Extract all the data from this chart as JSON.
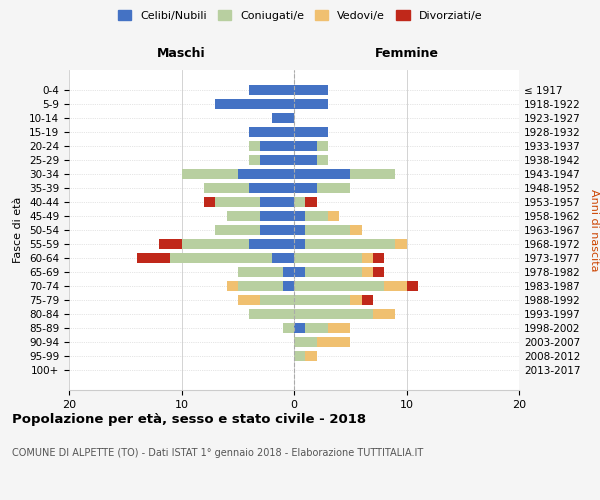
{
  "age_groups": [
    "0-4",
    "5-9",
    "10-14",
    "15-19",
    "20-24",
    "25-29",
    "30-34",
    "35-39",
    "40-44",
    "45-49",
    "50-54",
    "55-59",
    "60-64",
    "65-69",
    "70-74",
    "75-79",
    "80-84",
    "85-89",
    "90-94",
    "95-99",
    "100+"
  ],
  "birth_years": [
    "2013-2017",
    "2008-2012",
    "2003-2007",
    "1998-2002",
    "1993-1997",
    "1988-1992",
    "1983-1987",
    "1978-1982",
    "1973-1977",
    "1968-1972",
    "1963-1967",
    "1958-1962",
    "1953-1957",
    "1948-1952",
    "1943-1947",
    "1938-1942",
    "1933-1937",
    "1928-1932",
    "1923-1927",
    "1918-1922",
    "≤ 1917"
  ],
  "colors": {
    "celibi": "#4472c4",
    "coniugati": "#b8cfa0",
    "vedovi": "#f0c070",
    "divorziati": "#c0281a"
  },
  "males": {
    "celibi": [
      4,
      7,
      2,
      4,
      3,
      3,
      5,
      4,
      3,
      3,
      3,
      4,
      2,
      1,
      1,
      0,
      0,
      0,
      0,
      0,
      0
    ],
    "coniugati": [
      0,
      0,
      0,
      0,
      1,
      1,
      5,
      4,
      4,
      3,
      4,
      6,
      9,
      4,
      4,
      3,
      4,
      1,
      0,
      0,
      0
    ],
    "vedovi": [
      0,
      0,
      0,
      0,
      0,
      0,
      0,
      0,
      0,
      0,
      0,
      0,
      0,
      0,
      1,
      2,
      0,
      0,
      0,
      0,
      0
    ],
    "divorziati": [
      0,
      0,
      0,
      0,
      0,
      0,
      0,
      0,
      1,
      0,
      0,
      2,
      3,
      0,
      0,
      0,
      0,
      0,
      0,
      0,
      0
    ]
  },
  "females": {
    "nubili": [
      3,
      3,
      0,
      3,
      2,
      2,
      5,
      2,
      0,
      1,
      1,
      1,
      0,
      1,
      0,
      0,
      0,
      1,
      0,
      0,
      0
    ],
    "coniugate": [
      0,
      0,
      0,
      0,
      1,
      1,
      4,
      3,
      1,
      2,
      4,
      8,
      6,
      5,
      8,
      5,
      7,
      2,
      2,
      1,
      0
    ],
    "vedove": [
      0,
      0,
      0,
      0,
      0,
      0,
      0,
      0,
      0,
      1,
      1,
      1,
      1,
      1,
      2,
      1,
      2,
      2,
      3,
      1,
      0
    ],
    "divorziate": [
      0,
      0,
      0,
      0,
      0,
      0,
      0,
      0,
      1,
      0,
      0,
      0,
      1,
      1,
      1,
      1,
      0,
      0,
      0,
      0,
      0
    ]
  },
  "xlim": [
    -20,
    20
  ],
  "xticks": [
    -20,
    -10,
    0,
    10,
    20
  ],
  "xticklabels": [
    "20",
    "10",
    "0",
    "10",
    "20"
  ],
  "title": "Popolazione per età, sesso e stato civile - 2018",
  "subtitle": "COMUNE DI ALPETTE (TO) - Dati ISTAT 1° gennaio 2018 - Elaborazione TUTTITALIA.IT",
  "ylabel_left": "Fasce di età",
  "ylabel_right": "Anni di nascita",
  "header_maschi": "Maschi",
  "header_femmine": "Femmine",
  "bg_color": "#f5f5f5",
  "plot_bg": "#ffffff"
}
